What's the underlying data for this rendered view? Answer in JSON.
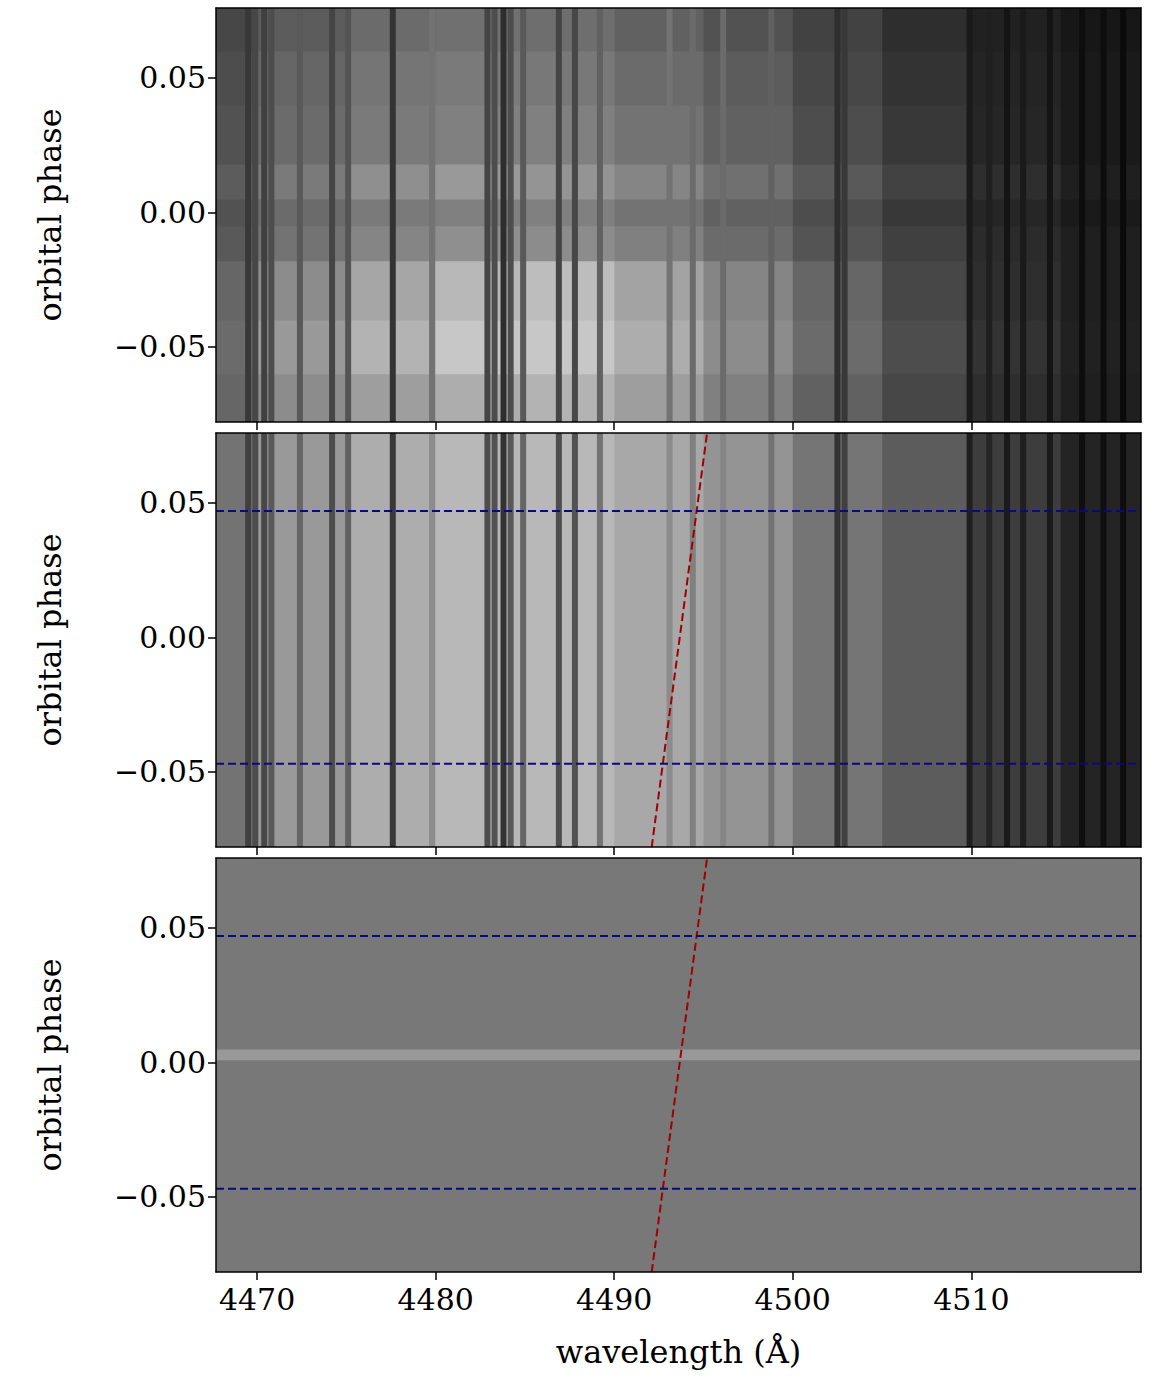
{
  "chart_data": [
    {
      "type": "heatmap",
      "ylabel": "orbital phase",
      "tick_labels": "y",
      "xlim": [
        4467.7,
        4519.5
      ],
      "ylim": [
        -0.078,
        0.076
      ],
      "xticks": [
        4470,
        4480,
        4490,
        4500,
        4510
      ],
      "yticks": [
        {
          "value": -0.05,
          "label": "−0.05"
        },
        {
          "value": 0,
          "label": "0.00"
        },
        {
          "value": 0.05,
          "label": "0.05"
        }
      ],
      "cells": {
        "wavelength_edges": [
          4467.7,
          4470,
          4475,
          4480,
          4485,
          4490,
          4495,
          4500,
          4505,
          4510,
          4515,
          4519.5
        ],
        "phase_edges": [
          -0.078,
          -0.06,
          -0.04,
          -0.018,
          -0.005,
          0.005,
          0.018,
          0.04,
          0.06,
          0.076
        ],
        "intensity": [
          [
            0.4,
            0.55,
            0.62,
            0.68,
            0.7,
            0.62,
            0.5,
            0.38,
            0.28,
            0.18,
            0.12
          ],
          [
            0.42,
            0.6,
            0.7,
            0.78,
            0.78,
            0.68,
            0.55,
            0.42,
            0.3,
            0.2,
            0.13
          ],
          [
            0.4,
            0.55,
            0.65,
            0.72,
            0.74,
            0.64,
            0.52,
            0.4,
            0.28,
            0.18,
            0.12
          ],
          [
            0.35,
            0.45,
            0.52,
            0.56,
            0.55,
            0.5,
            0.42,
            0.33,
            0.25,
            0.17,
            0.12
          ],
          [
            0.32,
            0.42,
            0.48,
            0.5,
            0.5,
            0.45,
            0.38,
            0.3,
            0.22,
            0.15,
            0.1
          ],
          [
            0.36,
            0.48,
            0.56,
            0.6,
            0.58,
            0.52,
            0.44,
            0.35,
            0.26,
            0.18,
            0.12
          ],
          [
            0.32,
            0.42,
            0.48,
            0.5,
            0.5,
            0.45,
            0.38,
            0.3,
            0.22,
            0.15,
            0.1
          ],
          [
            0.3,
            0.4,
            0.46,
            0.48,
            0.47,
            0.42,
            0.36,
            0.28,
            0.2,
            0.14,
            0.1
          ],
          [
            0.28,
            0.36,
            0.42,
            0.44,
            0.43,
            0.38,
            0.32,
            0.26,
            0.18,
            0.13,
            0.09
          ]
        ]
      },
      "absorption_lines": {
        "wavelength": [
          4469.5,
          4469.9,
          4470.4,
          4470.8,
          4472.4,
          4474.2,
          4475.1,
          4477.6,
          4479.8,
          4482.9,
          4483.3,
          4483.8,
          4484.2,
          4484.9,
          4486.9,
          4487.8,
          4489.2,
          4493.1,
          4494.4,
          4496.1,
          4498.8,
          4502.5,
          4502.9,
          4509.9,
          4511.0,
          4512.0,
          4512.9,
          4514.4,
          4516.2,
          4517.4,
          4518.5
        ],
        "intensity": [
          0.22,
          0.28,
          0.25,
          0.3,
          0.35,
          0.27,
          0.33,
          0.2,
          0.45,
          0.27,
          0.3,
          0.18,
          0.3,
          0.35,
          0.27,
          0.28,
          0.38,
          0.45,
          0.42,
          0.42,
          0.38,
          0.18,
          0.22,
          0.1,
          0.12,
          0.08,
          0.1,
          0.08,
          0.05,
          0.05,
          0.04
        ]
      }
    },
    {
      "type": "heatmap",
      "ylabel": "orbital phase",
      "tick_labels": "y",
      "xlim": [
        4467.7,
        4519.5
      ],
      "ylim": [
        -0.078,
        0.076
      ],
      "xticks": [
        4470,
        4480,
        4490,
        4500,
        4510
      ],
      "yticks": [
        {
          "value": -0.05,
          "label": "−0.05"
        },
        {
          "value": 0,
          "label": "0.00"
        },
        {
          "value": 0.05,
          "label": "0.05"
        }
      ],
      "cells": {
        "wavelength_edges": [
          4467.7,
          4470,
          4475,
          4480,
          4485,
          4490,
          4495,
          4500,
          4505,
          4510,
          4515,
          4519.5
        ],
        "phase_edges": [
          -0.078,
          0.076
        ],
        "intensity": [
          [
            0.45,
            0.6,
            0.68,
            0.72,
            0.72,
            0.66,
            0.58,
            0.46,
            0.36,
            0.24,
            0.14
          ]
        ]
      },
      "absorption_lines": {
        "wavelength": [
          4469.5,
          4469.9,
          4470.4,
          4470.8,
          4472.4,
          4474.2,
          4475.1,
          4477.6,
          4479.8,
          4482.9,
          4483.3,
          4483.8,
          4484.2,
          4484.9,
          4486.9,
          4487.8,
          4489.2,
          4493.1,
          4494.4,
          4496.1,
          4498.8,
          4502.5,
          4502.9,
          4509.9,
          4511.0,
          4512.0,
          4512.9,
          4514.4,
          4516.2,
          4517.4,
          4518.5
        ],
        "intensity": [
          0.25,
          0.3,
          0.28,
          0.35,
          0.4,
          0.3,
          0.38,
          0.22,
          0.55,
          0.3,
          0.32,
          0.2,
          0.35,
          0.4,
          0.3,
          0.32,
          0.45,
          0.55,
          0.5,
          0.52,
          0.45,
          0.2,
          0.25,
          0.12,
          0.15,
          0.1,
          0.12,
          0.1,
          0.06,
          0.06,
          0.05
        ]
      },
      "series": [
        {
          "type": "line",
          "color": "#a00000",
          "line_style": "dashed",
          "x": [
            4492.1,
            4495.2
          ],
          "values": [
            -0.078,
            0.076
          ]
        },
        {
          "type": "line",
          "color": "#0a0a80",
          "line_style": "dashed",
          "x": [
            4467.7,
            4519.5
          ],
          "values": [
            -0.047,
            -0.047
          ]
        },
        {
          "type": "line",
          "color": "#0a0a80",
          "line_style": "dashed",
          "x": [
            4467.7,
            4519.5
          ],
          "values": [
            0.047,
            0.047
          ]
        }
      ]
    },
    {
      "type": "heatmap",
      "ylabel": "orbital phase",
      "xlabel": "wavelength (Å)",
      "xlim": [
        4467.7,
        4519.5
      ],
      "ylim": [
        -0.078,
        0.076
      ],
      "xticks": [
        4470,
        4480,
        4490,
        4500,
        4510
      ],
      "yticks": [
        {
          "value": -0.05,
          "label": "−0.05"
        },
        {
          "value": 0,
          "label": "0.00"
        },
        {
          "value": 0.05,
          "label": "0.05"
        }
      ],
      "cells": {
        "wavelength_edges": [
          4467.7,
          4519.5
        ],
        "phase_edges": [
          -0.078,
          0.001,
          0.005,
          0.076
        ],
        "intensity": [
          [
            0.47
          ],
          [
            0.6
          ],
          [
            0.47
          ]
        ]
      },
      "series": [
        {
          "type": "line",
          "color": "#a00000",
          "line_style": "dashed",
          "x": [
            4492.1,
            4495.2
          ],
          "values": [
            -0.078,
            0.076
          ]
        },
        {
          "type": "line",
          "color": "#0a0a80",
          "line_style": "dashed",
          "x": [
            4467.7,
            4519.5
          ],
          "values": [
            -0.047,
            -0.047
          ]
        },
        {
          "type": "line",
          "color": "#0a0a80",
          "line_style": "dashed",
          "x": [
            4467.7,
            4519.5
          ],
          "values": [
            0.047,
            0.047
          ]
        }
      ]
    }
  ]
}
